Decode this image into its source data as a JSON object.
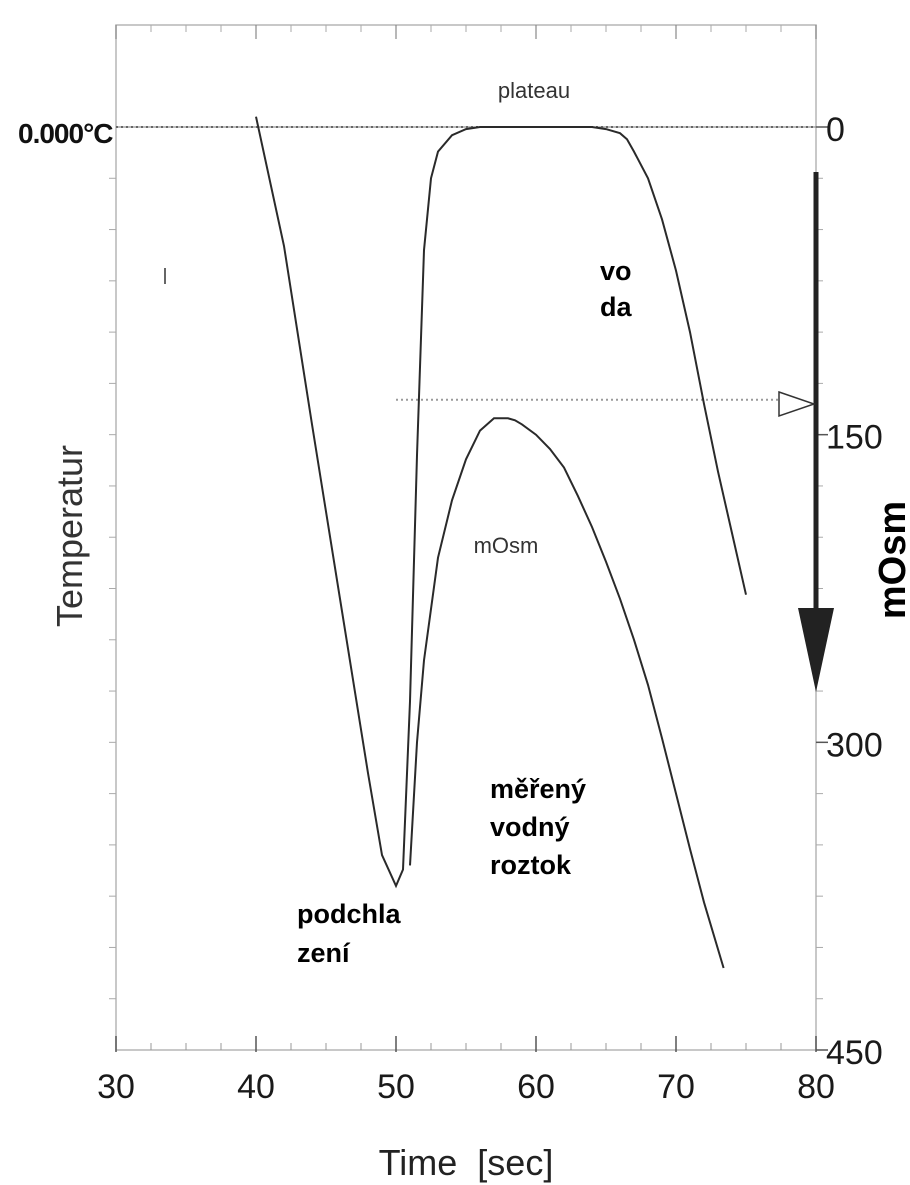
{
  "chart_data": {
    "type": "line",
    "xlabel": "Time  [sec]",
    "ylabel_left": "Temperatur",
    "ylabel_right": "mOsm",
    "zero_label": "0.000°C",
    "x_ticks": [
      "30",
      "40",
      "50",
      "60",
      "70",
      "80"
    ],
    "xlim": [
      30,
      80
    ],
    "right_ticks": [
      "0",
      "150",
      "300",
      "450"
    ],
    "right_lim": [
      0,
      450
    ],
    "grid": false,
    "series": [
      {
        "name": "plateau",
        "x": [
          40,
          42,
          44,
          46,
          48,
          49,
          50,
          50.5,
          51,
          51.5,
          52,
          52.5,
          53,
          54,
          55,
          56,
          58,
          60,
          62,
          64,
          65,
          66,
          66.5,
          67,
          68,
          69,
          70,
          71,
          72,
          73,
          74,
          75
        ],
        "y": [
          -5,
          58,
          145,
          230,
          315,
          355,
          370,
          362,
          280,
          160,
          60,
          25,
          12,
          4,
          1,
          0,
          0,
          0,
          0,
          0,
          1,
          3,
          6,
          12,
          25,
          45,
          70,
          100,
          135,
          168,
          198,
          228
        ]
      },
      {
        "name": "mOsm",
        "x": [
          51,
          51.5,
          52,
          53,
          54,
          55,
          56,
          57,
          58,
          58.5,
          59,
          60,
          61,
          62,
          63,
          64,
          65,
          66,
          67,
          68,
          69,
          70,
          71,
          72,
          73.4
        ],
        "y": [
          360,
          300,
          260,
          210,
          182,
          162,
          148,
          142,
          142,
          143,
          145,
          150,
          157,
          166,
          180,
          195,
          212,
          230,
          250,
          272,
          298,
          325,
          352,
          378,
          410
        ]
      }
    ],
    "reference_line": {
      "y": 133,
      "x_start": 50
    },
    "labels": {
      "plateau": "plateau",
      "voda": [
        "vo",
        "da"
      ],
      "mosm": "mOsm",
      "roztok": [
        "měřený",
        "vodný",
        "roztok"
      ],
      "podchlazeni": [
        "podchla",
        "zení"
      ]
    },
    "colors": {
      "line": "#2a2a2a",
      "axis": "#111111",
      "frame": "#b5b5b5",
      "dotted": "#9a9a9a",
      "arrow": "#222222"
    }
  }
}
